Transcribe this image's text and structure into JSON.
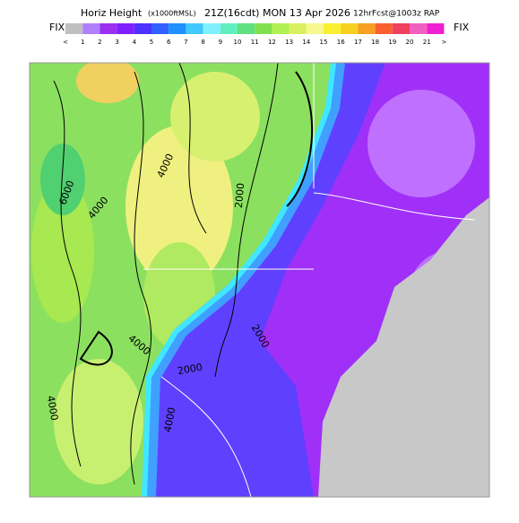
{
  "header": {
    "title": "Horiz Height",
    "units": "(x1000ftMSL)",
    "valid": "21Z(16cdt) MON 13 Apr 2026",
    "run": "12hrFcst@1003z RAP"
  },
  "colorbar": {
    "left": "FIX",
    "right": "FIX",
    "labels": [
      "<",
      "1",
      "2",
      "3",
      "4",
      "5",
      "6",
      "7",
      "8",
      "9",
      "10",
      "11",
      "12",
      "13",
      "14",
      "15",
      "16",
      "17",
      "18",
      "19",
      "20",
      "21",
      ">"
    ]
  },
  "map": {
    "contour_labels": [
      "6000",
      "4000",
      "4000",
      "2000",
      "2000",
      "4000",
      "2000",
      "4000",
      "4000"
    ]
  }
}
